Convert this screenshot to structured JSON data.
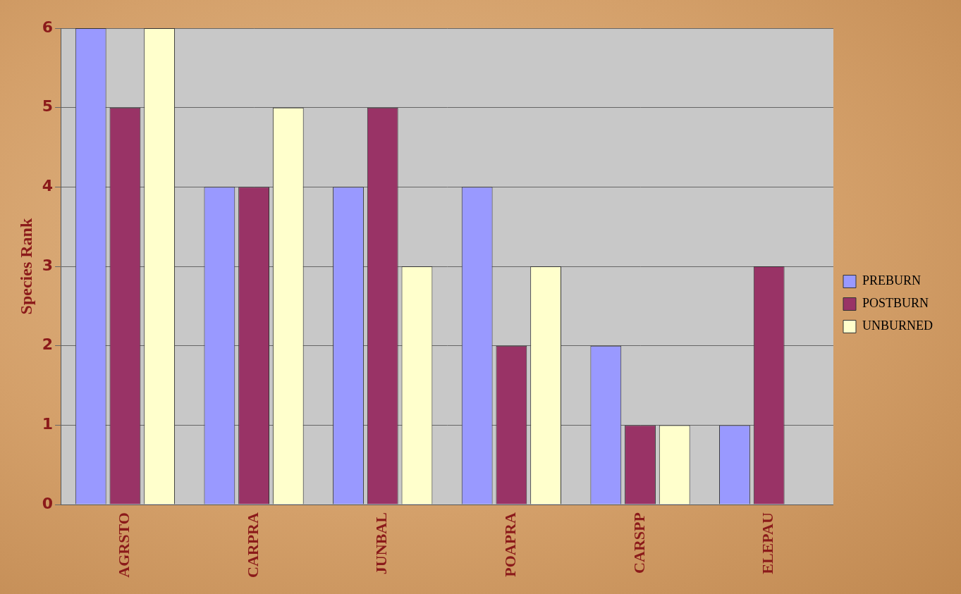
{
  "chart_data": {
    "type": "bar",
    "ylabel": "Species Rank",
    "categories": [
      "AGRSTO",
      "CARPRA",
      "JUNBAL",
      "POAPRA",
      "CARSPP",
      "ELEPAU"
    ],
    "series": [
      {
        "name": "PREBURN",
        "color": "#9999ff",
        "values": [
          6,
          4,
          4,
          4,
          2,
          1
        ]
      },
      {
        "name": "POSTBURN",
        "color": "#993366",
        "values": [
          5,
          4,
          5,
          2,
          1,
          3
        ]
      },
      {
        "name": "UNBURNED",
        "color": "#ffffcc",
        "values": [
          6,
          5,
          3,
          3,
          1,
          0
        ]
      }
    ],
    "ylim": [
      0,
      6
    ],
    "yticks": [
      0,
      1,
      2,
      3,
      4,
      5,
      6
    ],
    "grid": true,
    "legend": "right"
  }
}
